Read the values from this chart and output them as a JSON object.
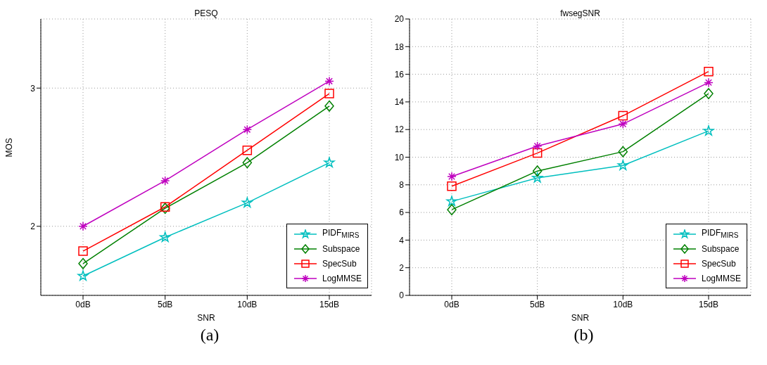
{
  "chart_data": [
    {
      "type": "line",
      "title": "PESQ",
      "xlabel": "SNR",
      "ylabel": "MOS",
      "categories": [
        "0dB",
        "5dB",
        "10dB",
        "15dB"
      ],
      "ylim": [
        1.5,
        3.5
      ],
      "yticks": [
        2,
        3
      ],
      "grid": true,
      "legend": "bottom right",
      "line_style": "solid",
      "annotations": [
        "(a)"
      ],
      "series": [
        {
          "name": "PIDF$_{MIRS}$",
          "color": "#00bfbf",
          "marker": "star",
          "values": [
            1.64,
            1.92,
            2.17,
            2.46
          ]
        },
        {
          "name": "Subspace",
          "color": "#008000",
          "marker": "diamond",
          "values": [
            1.73,
            2.13,
            2.46,
            2.87
          ]
        },
        {
          "name": "SpecSub",
          "color": "#ff0000",
          "marker": "square",
          "values": [
            1.82,
            2.14,
            2.55,
            2.96
          ]
        },
        {
          "name": "LogMMSE",
          "color": "#bf00bf",
          "marker": "cross",
          "values": [
            2.0,
            2.33,
            2.7,
            3.05
          ]
        }
      ]
    },
    {
      "type": "line",
      "title": "fwsegSNR",
      "xlabel": "SNR",
      "categories": [
        "0dB",
        "5dB",
        "10dB",
        "15dB"
      ],
      "ylim": [
        0,
        20
      ],
      "yticks": [
        0,
        2,
        4,
        6,
        8,
        10,
        12,
        14,
        16,
        18,
        20
      ],
      "grid": true,
      "legend": "bottom right",
      "line_style": "solid",
      "annotations": [
        "(b)"
      ],
      "series": [
        {
          "name": "PIDF$_{MIRS}$",
          "color": "#00bfbf",
          "marker": "star",
          "values": [
            6.8,
            8.5,
            9.4,
            11.9
          ]
        },
        {
          "name": "Subspace",
          "color": "#008000",
          "marker": "diamond",
          "values": [
            6.2,
            9.0,
            10.4,
            14.6
          ]
        },
        {
          "name": "SpecSub",
          "color": "#ff0000",
          "marker": "square",
          "values": [
            7.9,
            10.3,
            13.0,
            16.2
          ]
        },
        {
          "name": "LogMMSE",
          "color": "#bf00bf",
          "marker": "cross",
          "values": [
            8.6,
            10.8,
            12.4,
            15.4
          ]
        }
      ]
    }
  ]
}
